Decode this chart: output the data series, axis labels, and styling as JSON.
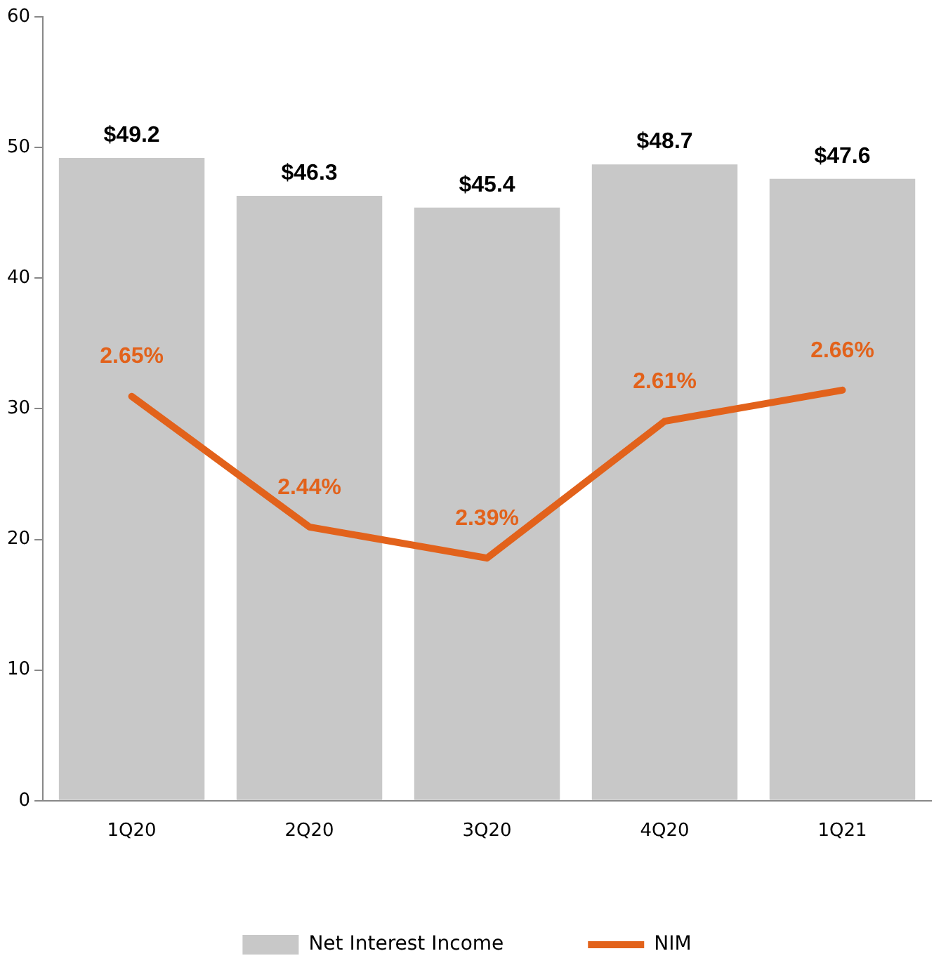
{
  "chart_data": {
    "type": "bar",
    "categories": [
      "1Q20",
      "2Q20",
      "3Q20",
      "4Q20",
      "1Q21"
    ],
    "series": [
      {
        "name": "Net Interest Income",
        "color": "#c8c8c8",
        "values": [
          49.2,
          46.3,
          45.4,
          48.7,
          47.6
        ],
        "value_labels": [
          "$49.2",
          "$46.3",
          "$45.4",
          "$48.7",
          "$47.6"
        ]
      },
      {
        "name": "NIM",
        "type": "line",
        "axis": "y2",
        "color": "#e2621b",
        "values": [
          2.65,
          2.44,
          2.39,
          2.61,
          2.66
        ],
        "value_labels": [
          "2.65%",
          "2.44%",
          "2.39%",
          "2.61%",
          "2.66%"
        ]
      }
    ],
    "ylim": [
      0,
      60
    ],
    "yticks": [
      0,
      10,
      20,
      30,
      40,
      50,
      60
    ],
    "y2lim": [
      2.0,
      3.26
    ],
    "tick_labels": "xy",
    "grid": false,
    "legend": "bottom",
    "marker": "none",
    "line_style": "solid"
  }
}
